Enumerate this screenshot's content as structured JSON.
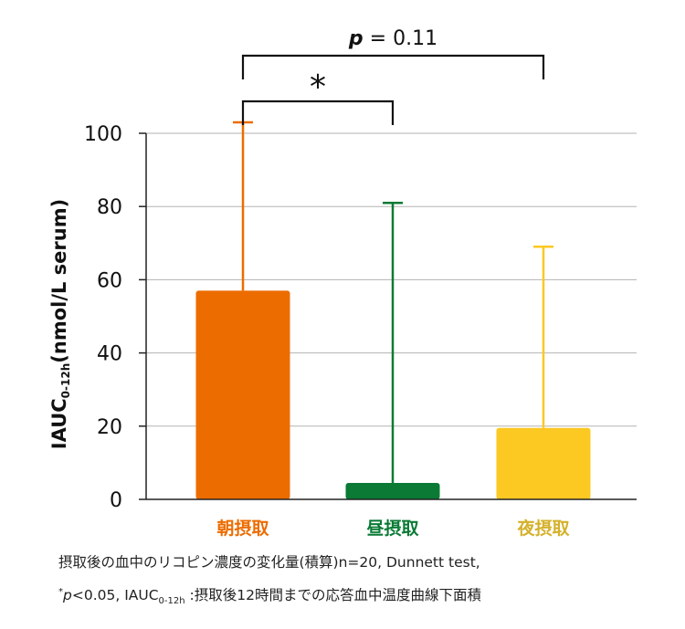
{
  "chart_data": {
    "type": "bar",
    "categories": [
      "朝摂取",
      "昼摂取",
      "夜摂取"
    ],
    "values": [
      57,
      4.5,
      19.5
    ],
    "error_upper": [
      103,
      81,
      69
    ],
    "colors": [
      "#EC6C00",
      "#0A7A35",
      "#FCC822"
    ],
    "label_colors": [
      "#EC6C00",
      "#0A7A35",
      "#D4B12A"
    ],
    "ylabel": {
      "main": "IAUC",
      "sub": "0-12h",
      "rest": "(nmol/L serum)"
    },
    "ylim": [
      0,
      100
    ],
    "yticks": [
      0,
      20,
      40,
      60,
      80,
      100
    ],
    "grid": true,
    "significance": [
      {
        "from": 0,
        "to": 2,
        "label_italic": "p",
        "label": " = 0.11"
      },
      {
        "from": 0,
        "to": 1,
        "label_italic": "",
        "label": "*"
      }
    ]
  },
  "footnote": {
    "line1": "摂取後の血中のリコピン濃度の変化量(積算)n=20, Dunnett test,",
    "line2_star": "*",
    "line2_p": "p",
    "line2_a": "<0.05, IAUC",
    "line2_sub": "0-12h",
    "line2_b": " :摂取後12時間までの応答血中温度曲線下面積"
  }
}
